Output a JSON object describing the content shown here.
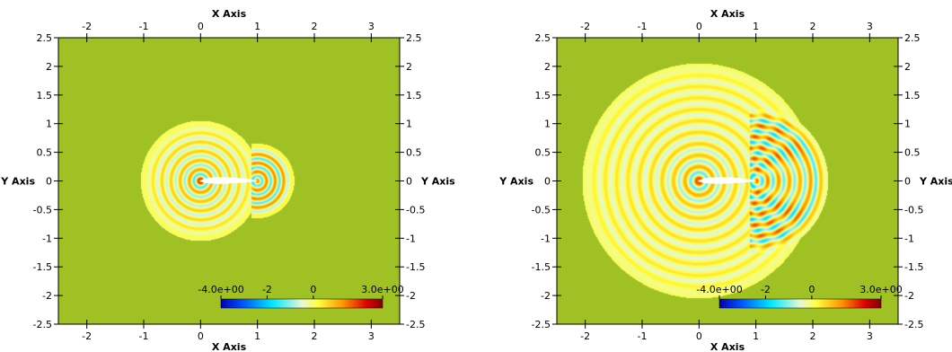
{
  "chart_data": [
    {
      "type": "heatmap",
      "xlabel": "X Axis",
      "ylabel": "Y Axis",
      "xlim": [
        -2.5,
        3.5
      ],
      "ylim": [
        -2.5,
        2.5
      ],
      "x_ticks": [
        "-2",
        "-1",
        "0",
        "1",
        "2",
        "3"
      ],
      "y_ticks": [
        "2.5",
        "2",
        "1.5",
        "1",
        "0.5",
        "0",
        "-0.5",
        "-1",
        "-1.5",
        "-2",
        "-2.5"
      ],
      "colorbar": {
        "min": -4.0,
        "max": 3.0,
        "labels": [
          "-4.0e+00",
          "-2",
          "0",
          "3.0e+00"
        ]
      },
      "background_value": 0,
      "wave_source": [
        0,
        0
      ],
      "wavefront_radius": 1.05,
      "ring_wavelength": 0.16,
      "airfoil": {
        "x_start": 0,
        "x_end": 1
      }
    },
    {
      "type": "heatmap",
      "xlabel": "X Axis",
      "ylabel": "Y Axis",
      "xlim": [
        -2.5,
        3.5
      ],
      "ylim": [
        -2.5,
        2.5
      ],
      "x_ticks": [
        "-2",
        "-1",
        "0",
        "1",
        "2",
        "3"
      ],
      "y_ticks": [
        "2.5",
        "2",
        "1.5",
        "1",
        "0.5",
        "0",
        "-0.5",
        "-1",
        "-1.5",
        "-2",
        "-2.5"
      ],
      "colorbar": {
        "min": -4.0,
        "max": 3.0,
        "labels": [
          "-4.0e+00",
          "-2",
          "0",
          "3.0e+00"
        ]
      },
      "background_value": 0,
      "wave_source": [
        0,
        0
      ],
      "wavefront_radius": 2.05,
      "ring_wavelength": 0.2,
      "airfoil": {
        "x_start": 0,
        "x_end": 1
      }
    }
  ]
}
